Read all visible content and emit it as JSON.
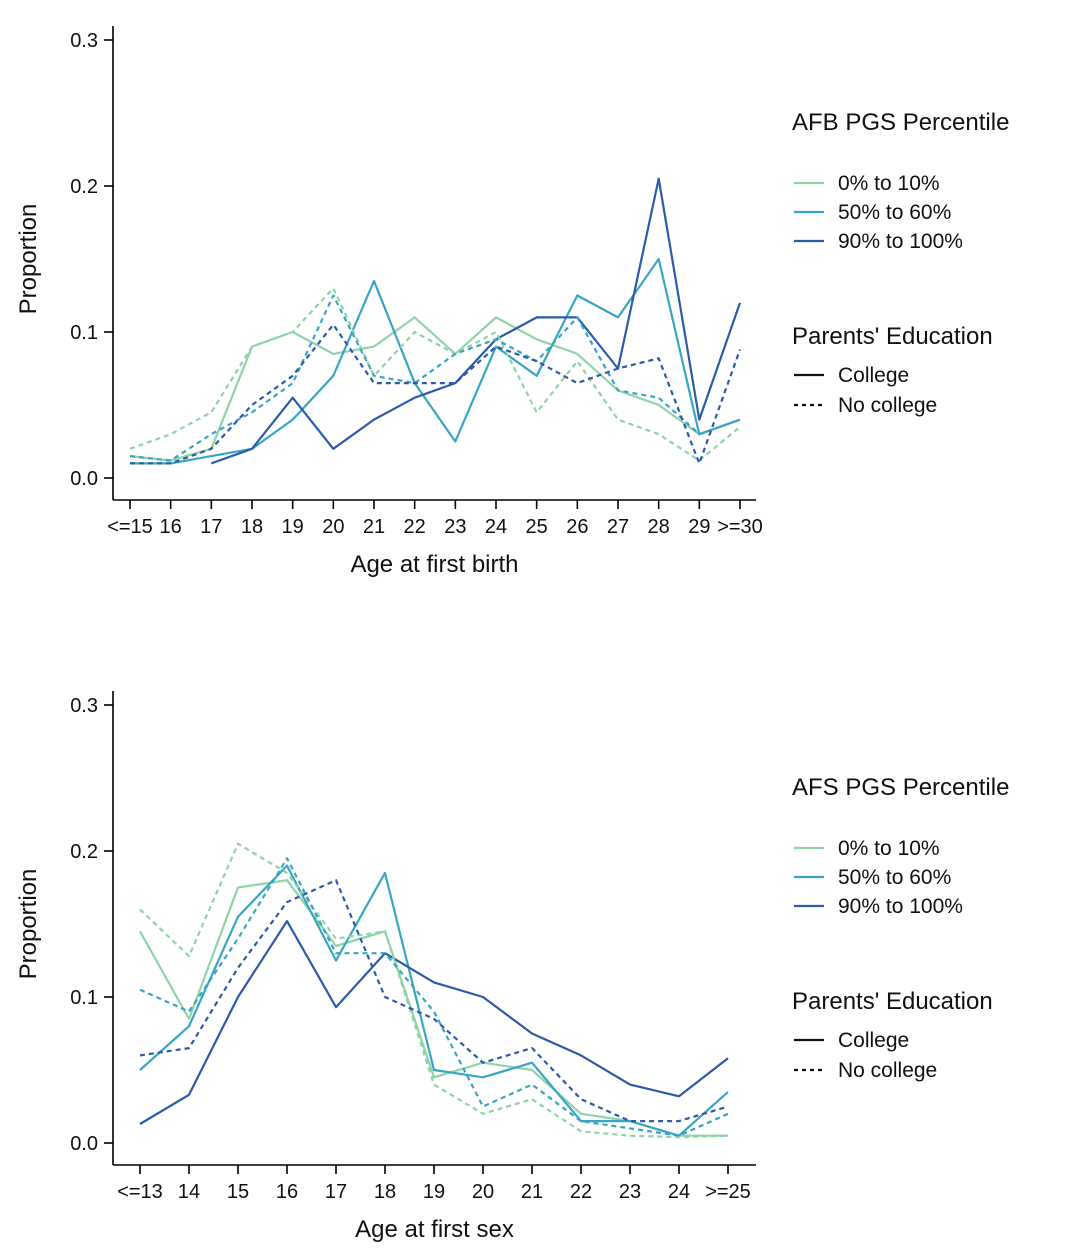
{
  "page": {
    "background": "#ffffff",
    "axis_color": "#000000",
    "text_color": "#111111"
  },
  "colors": {
    "pgs_0_10": "#8FD3A8",
    "pgs_50_60": "#38A5C4",
    "pgs_90_100": "#2C5BA9",
    "edu_swatch": "#111111"
  },
  "chart_data": [
    {
      "type": "line",
      "xlabel": "Age at first birth",
      "ylabel": "Proportion",
      "ylim": [
        0,
        0.3
      ],
      "yticks": [
        0,
        0.1,
        0.2,
        0.3
      ],
      "ytick_labels": [
        "0.0",
        "0.1",
        "0.2",
        "0.3"
      ],
      "grid": false,
      "legend_position": "right",
      "categories": [
        "<=15",
        "16",
        "17",
        "18",
        "19",
        "20",
        "21",
        "22",
        "23",
        "24",
        "25",
        "26",
        "27",
        "28",
        "29",
        ">=30"
      ],
      "series": [
        {
          "name": "0% to 10%",
          "education": "College",
          "dash": "solid",
          "color": "#8FD3A8",
          "values": [
            0.015,
            0.012,
            0.02,
            0.09,
            0.1,
            0.085,
            0.09,
            0.11,
            0.085,
            0.11,
            0.095,
            0.085,
            0.06,
            0.05,
            0.03,
            0.04
          ]
        },
        {
          "name": "50% to 60%",
          "education": "College",
          "dash": "solid",
          "color": "#38A5C4",
          "values": [
            0.01,
            0.01,
            0.015,
            0.02,
            0.04,
            0.07,
            0.135,
            0.065,
            0.025,
            0.09,
            0.07,
            0.125,
            0.11,
            0.15,
            0.03,
            0.04
          ]
        },
        {
          "name": "90% to 100%",
          "education": "College",
          "dash": "solid",
          "color": "#2C5BA9",
          "values": [
            null,
            null,
            0.01,
            0.02,
            0.055,
            0.02,
            0.04,
            0.055,
            0.065,
            0.095,
            0.11,
            0.11,
            0.075,
            0.205,
            0.04,
            0.12
          ]
        },
        {
          "name": "0% to 10%",
          "education": "No college",
          "dash": "dashed",
          "color": "#8FD3A8",
          "values": [
            0.02,
            0.03,
            0.045,
            0.09,
            0.1,
            0.13,
            0.07,
            0.1,
            0.085,
            0.1,
            0.045,
            0.08,
            0.04,
            0.03,
            0.012,
            0.035
          ]
        },
        {
          "name": "50% to 60%",
          "education": "No college",
          "dash": "dashed",
          "color": "#38A5C4",
          "values": [
            0.015,
            0.012,
            0.03,
            0.045,
            0.065,
            0.125,
            0.07,
            0.065,
            0.085,
            0.095,
            0.08,
            0.11,
            0.06,
            0.055,
            0.03,
            0.04
          ]
        },
        {
          "name": "90% to 100%",
          "education": "No college",
          "dash": "dashed",
          "color": "#2C5BA9",
          "values": [
            0.01,
            0.01,
            0.02,
            0.05,
            0.07,
            0.105,
            0.065,
            0.065,
            0.065,
            0.09,
            0.08,
            0.065,
            0.075,
            0.082,
            0.01,
            0.088
          ]
        }
      ],
      "legend": {
        "pgs_title": "AFB PGS Percentile",
        "pgs_items": [
          {
            "label": "0% to 10%",
            "color": "#8FD3A8"
          },
          {
            "label": "50% to 60%",
            "color": "#38A5C4"
          },
          {
            "label": "90% to 100%",
            "color": "#2C5BA9"
          }
        ],
        "edu_title": "Parents' Education",
        "edu_items": [
          {
            "label": "College",
            "dash": "solid"
          },
          {
            "label": "No college",
            "dash": "dashed"
          }
        ]
      }
    },
    {
      "type": "line",
      "xlabel": "Age at first sex",
      "ylabel": "Proportion",
      "ylim": [
        0,
        0.3
      ],
      "yticks": [
        0,
        0.1,
        0.2,
        0.3
      ],
      "ytick_labels": [
        "0.0",
        "0.1",
        "0.2",
        "0.3"
      ],
      "grid": false,
      "legend_position": "right",
      "categories": [
        "<=13",
        "14",
        "15",
        "16",
        "17",
        "18",
        "19",
        "20",
        "21",
        "22",
        "23",
        "24",
        ">=25"
      ],
      "series": [
        {
          "name": "0% to 10%",
          "education": "College",
          "dash": "solid",
          "color": "#8FD3A8",
          "values": [
            0.145,
            0.085,
            0.175,
            0.18,
            0.135,
            0.145,
            0.045,
            0.055,
            0.05,
            0.02,
            0.015,
            0.005,
            0.005
          ]
        },
        {
          "name": "50% to 60%",
          "education": "College",
          "dash": "solid",
          "color": "#38A5C4",
          "values": [
            0.05,
            0.08,
            0.155,
            0.19,
            0.125,
            0.185,
            0.05,
            0.045,
            0.055,
            0.015,
            0.015,
            0.005,
            0.035
          ]
        },
        {
          "name": "90% to 100%",
          "education": "College",
          "dash": "solid",
          "color": "#2C5BA9",
          "values": [
            0.013,
            0.033,
            0.1,
            0.152,
            0.093,
            0.13,
            0.11,
            0.1,
            0.075,
            0.06,
            0.04,
            0.032,
            0.058
          ]
        },
        {
          "name": "0% to 10%",
          "education": "No college",
          "dash": "dashed",
          "color": "#8FD3A8",
          "values": [
            0.16,
            0.128,
            0.205,
            0.185,
            0.14,
            0.145,
            0.04,
            0.02,
            0.03,
            0.008,
            0.005,
            0.004,
            0.005
          ]
        },
        {
          "name": "50% to 60%",
          "education": "No college",
          "dash": "dashed",
          "color": "#38A5C4",
          "values": [
            0.105,
            0.09,
            0.14,
            0.195,
            0.13,
            0.13,
            0.09,
            0.025,
            0.04,
            0.015,
            0.01,
            0.005,
            0.02
          ]
        },
        {
          "name": "90% to 100%",
          "education": "No college",
          "dash": "dashed",
          "color": "#2C5BA9",
          "values": [
            0.06,
            0.065,
            0.12,
            0.165,
            0.18,
            0.1,
            0.085,
            0.055,
            0.065,
            0.03,
            0.015,
            0.015,
            0.025
          ]
        }
      ],
      "legend": {
        "pgs_title": "AFS PGS Percentile",
        "pgs_items": [
          {
            "label": "0% to 10%",
            "color": "#8FD3A8"
          },
          {
            "label": "50% to 60%",
            "color": "#38A5C4"
          },
          {
            "label": "90% to 100%",
            "color": "#2C5BA9"
          }
        ],
        "edu_title": "Parents' Education",
        "edu_items": [
          {
            "label": "College",
            "dash": "solid"
          },
          {
            "label": "No college",
            "dash": "dashed"
          }
        ]
      }
    }
  ]
}
